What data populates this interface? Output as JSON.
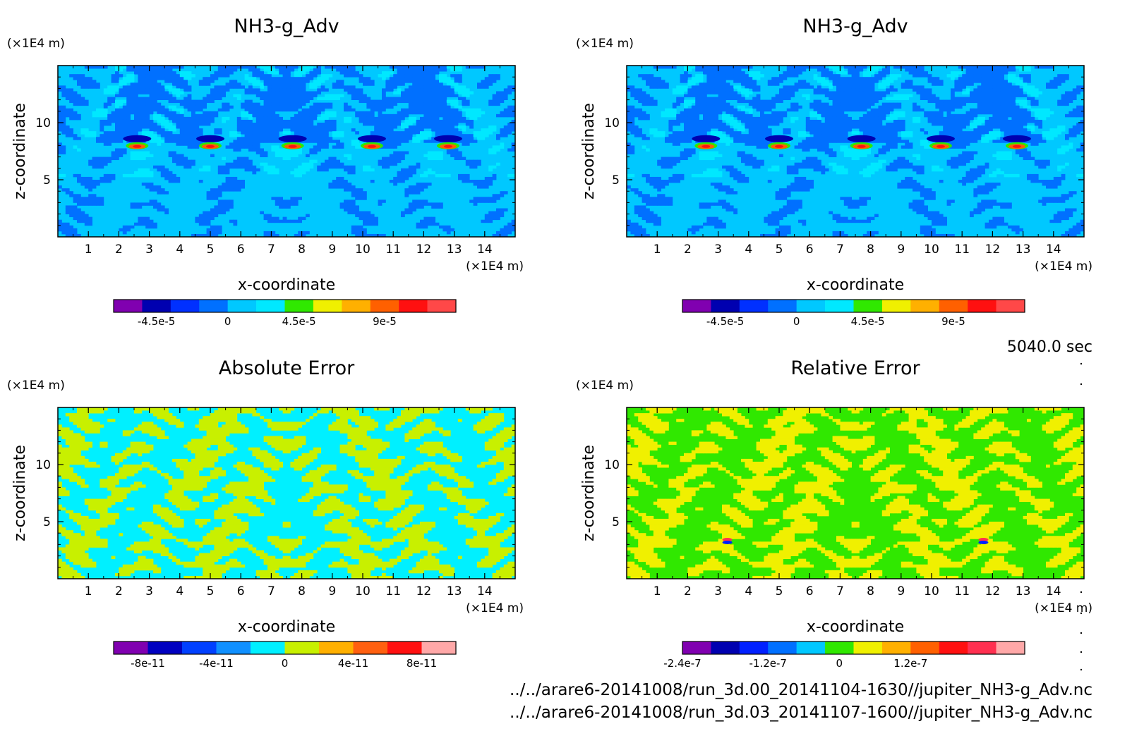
{
  "time_label": "5040.0 sec",
  "files": [
    "../../arare6-20141008/run_3d.00_20141104-1630//jupiter_NH3-g_Adv.nc",
    "../../arare6-20141008/run_3d.03_20141107-1600//jupiter_NH3-g_Adv.nc"
  ],
  "chart_data": [
    {
      "type": "heatmap",
      "title": "NH3-g_Adv",
      "xlabel": "x-coordinate",
      "ylabel": "z-coordinate",
      "x_unit": "(×1E4 m)",
      "y_unit": "(×1E4 m)",
      "xlim": [
        0,
        15
      ],
      "ylim": [
        0,
        15
      ],
      "xticks": [
        "1",
        "2",
        "3",
        "4",
        "5",
        "6",
        "7",
        "8",
        "9",
        "10",
        "11",
        "12",
        "13",
        "14"
      ],
      "yticks": [
        "5",
        "10"
      ],
      "colorbar": {
        "colors": [
          "#8000b0",
          "#0000b0",
          "#0030ff",
          "#0070ff",
          "#00c8ff",
          "#00e8ff",
          "#30e800",
          "#f0f000",
          "#ffb000",
          "#ff6000",
          "#ff1010",
          "#ff4848"
        ],
        "tick_labels": [
          "-4.5e-5",
          "0",
          "4.5e-5",
          "9e-5"
        ]
      }
    },
    {
      "type": "heatmap",
      "title": "NH3-g_Adv",
      "xlabel": "x-coordinate",
      "ylabel": "z-coordinate",
      "x_unit": "(×1E4 m)",
      "y_unit": "(×1E4 m)",
      "xlim": [
        0,
        15
      ],
      "ylim": [
        0,
        15
      ],
      "xticks": [
        "1",
        "2",
        "3",
        "4",
        "5",
        "6",
        "7",
        "8",
        "9",
        "10",
        "11",
        "12",
        "13",
        "14"
      ],
      "yticks": [
        "5",
        "10"
      ],
      "colorbar": {
        "colors": [
          "#8000b0",
          "#0000b0",
          "#0030ff",
          "#0070ff",
          "#00c8ff",
          "#00e8ff",
          "#30e800",
          "#f0f000",
          "#ffb000",
          "#ff6000",
          "#ff1010",
          "#ff4848"
        ],
        "tick_labels": [
          "-4.5e-5",
          "0",
          "4.5e-5",
          "9e-5"
        ]
      }
    },
    {
      "type": "heatmap",
      "title": "Absolute Error",
      "xlabel": "x-coordinate",
      "ylabel": "z-coordinate",
      "x_unit": "(×1E4 m)",
      "y_unit": "(×1E4 m)",
      "xlim": [
        0,
        15
      ],
      "ylim": [
        0,
        15
      ],
      "xticks": [
        "1",
        "2",
        "3",
        "4",
        "5",
        "6",
        "7",
        "8",
        "9",
        "10",
        "11",
        "12",
        "13",
        "14"
      ],
      "yticks": [
        "5",
        "10"
      ],
      "colorbar": {
        "colors": [
          "#8000b0",
          "#0000c0",
          "#0040ff",
          "#1090ff",
          "#00f0ff",
          "#c8f000",
          "#ffb000",
          "#ff6010",
          "#ff1010",
          "#ffa8a8"
        ],
        "tick_labels": [
          "-8e-11",
          "-4e-11",
          "0",
          "4e-11",
          "8e-11"
        ]
      }
    },
    {
      "type": "heatmap",
      "title": "Relative Error",
      "xlabel": "x-coordinate",
      "ylabel": "z-coordinate",
      "x_unit": "(×1E4 m)",
      "y_unit": "(×1E4 m)",
      "xlim": [
        0,
        15
      ],
      "ylim": [
        0,
        15
      ],
      "xticks": [
        "1",
        "2",
        "3",
        "4",
        "5",
        "6",
        "7",
        "8",
        "9",
        "10",
        "11",
        "12",
        "13",
        "14"
      ],
      "yticks": [
        "5",
        "10"
      ],
      "colorbar": {
        "colors": [
          "#8000b0",
          "#0000b0",
          "#0020ff",
          "#0070ff",
          "#00c8ff",
          "#30e800",
          "#f0f000",
          "#ffb000",
          "#ff6000",
          "#ff1010",
          "#ff3050",
          "#ffa8a8"
        ],
        "tick_labels": [
          "-2.4e-7",
          "-1.2e-7",
          "0",
          "1.2e-7"
        ]
      }
    }
  ]
}
